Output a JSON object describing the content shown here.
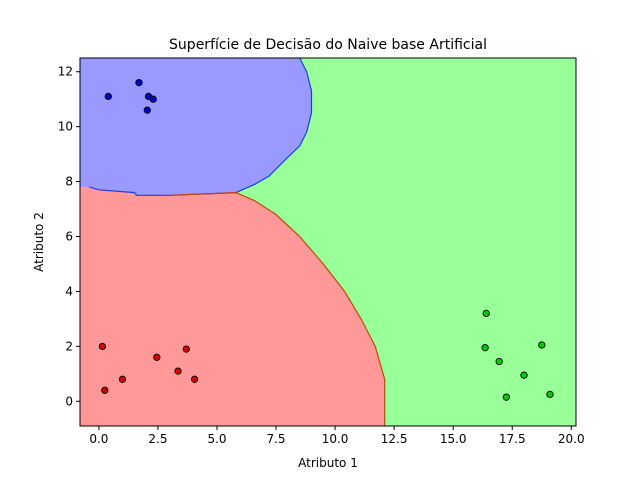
{
  "chart_data": {
    "type": "scatter",
    "title": "Superfície de Decisão do Naive base Artificial",
    "xlabel": "Atributo 1",
    "ylabel": "Atributo 2",
    "xlim": [
      -0.8,
      20.2
    ],
    "ylim": [
      -0.9,
      12.5
    ],
    "xticks": [
      0.0,
      2.5,
      5.0,
      7.5,
      10.0,
      12.5,
      15.0,
      17.5,
      20.0
    ],
    "xtick_labels": [
      "0.0",
      "2.5",
      "5.0",
      "7.5",
      "10.0",
      "12.5",
      "15.0",
      "17.5",
      "20.0"
    ],
    "yticks": [
      0,
      2,
      4,
      6,
      8,
      10,
      12
    ],
    "ytick_labels": [
      "0",
      "2",
      "4",
      "6",
      "8",
      "10",
      "12"
    ],
    "grid": false,
    "regions": [
      {
        "class": "blue",
        "fill": "#9999ff",
        "edge": "#0000cc",
        "boundary": [
          [
            -0.8,
            12.5
          ],
          [
            8.5,
            12.5
          ],
          [
            8.8,
            12.0
          ],
          [
            9.0,
            11.3
          ],
          [
            9.0,
            10.5
          ],
          [
            8.8,
            9.8
          ],
          [
            8.5,
            9.3
          ],
          [
            7.9,
            8.8
          ],
          [
            7.2,
            8.2
          ],
          [
            6.6,
            7.9
          ],
          [
            5.8,
            7.6
          ],
          [
            3.0,
            7.5
          ],
          [
            1.6,
            7.5
          ],
          [
            1.5,
            7.6
          ],
          [
            0.0,
            7.7
          ],
          [
            -0.4,
            7.8
          ],
          [
            -0.8,
            7.8
          ]
        ]
      },
      {
        "class": "red",
        "fill": "#ff9999",
        "edge": "#cc3300",
        "boundary": [
          [
            -0.8,
            7.8
          ],
          [
            -0.4,
            7.8
          ],
          [
            0.0,
            7.7
          ],
          [
            1.5,
            7.6
          ],
          [
            1.6,
            7.5
          ],
          [
            3.0,
            7.5
          ],
          [
            5.8,
            7.6
          ],
          [
            6.6,
            7.3
          ],
          [
            7.5,
            6.8
          ],
          [
            8.5,
            6.0
          ],
          [
            9.5,
            5.0
          ],
          [
            10.4,
            4.0
          ],
          [
            11.1,
            3.0
          ],
          [
            11.7,
            2.0
          ],
          [
            12.1,
            0.8
          ],
          [
            12.1,
            -0.9
          ],
          [
            -0.8,
            -0.9
          ]
        ]
      },
      {
        "class": "green",
        "fill": "#99ff99",
        "edge": "#009900",
        "boundary": []
      }
    ],
    "series": [
      {
        "class": "blue",
        "color": "#0000cc",
        "points": [
          [
            0.4,
            11.1
          ],
          [
            1.7,
            11.6
          ],
          [
            2.1,
            11.1
          ],
          [
            2.3,
            11.0
          ],
          [
            2.05,
            10.6
          ]
        ]
      },
      {
        "class": "red",
        "color": "#dd0000",
        "points": [
          [
            0.15,
            2.0
          ],
          [
            0.25,
            0.4
          ],
          [
            1.0,
            0.8
          ],
          [
            2.45,
            1.6
          ],
          [
            3.35,
            1.1
          ],
          [
            3.7,
            1.9
          ],
          [
            4.05,
            0.8
          ]
        ]
      },
      {
        "class": "green",
        "color": "#00cc00",
        "points": [
          [
            16.4,
            3.2
          ],
          [
            16.35,
            1.95
          ],
          [
            16.95,
            1.45
          ],
          [
            17.25,
            0.15
          ],
          [
            18.0,
            0.95
          ],
          [
            18.75,
            2.05
          ],
          [
            19.1,
            0.25
          ]
        ]
      }
    ]
  }
}
